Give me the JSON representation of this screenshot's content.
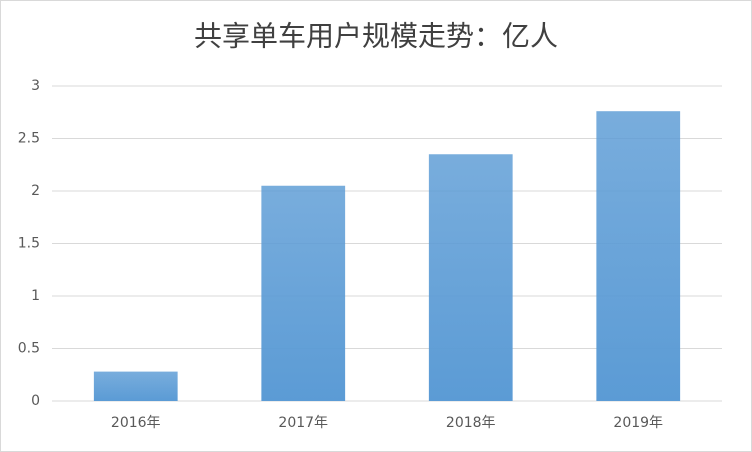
{
  "chart_data": {
    "type": "bar",
    "title": "共享单车用户规模走势：亿人",
    "categories": [
      "2016年",
      "2017年",
      "2018年",
      "2019年"
    ],
    "values": [
      0.28,
      2.05,
      2.35,
      2.76
    ],
    "color": "#5b9bd5",
    "ylim": [
      0,
      3
    ],
    "yticks": [
      0,
      0.5,
      1,
      1.5,
      2,
      2.5,
      3
    ],
    "grid": true
  }
}
